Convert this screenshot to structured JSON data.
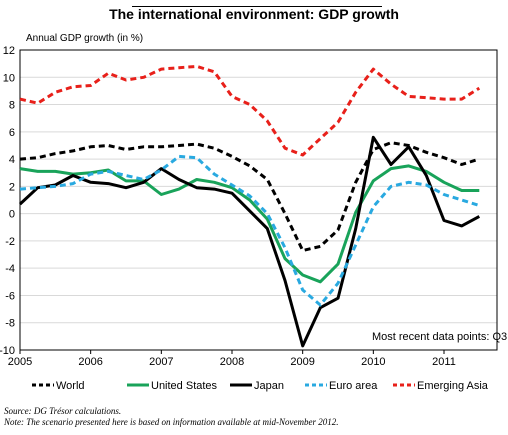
{
  "chart_data": {
    "type": "line",
    "title": "The international environment: GDP growth",
    "ylabel": "Annual GDP growth (in %)",
    "ylim": [
      -10,
      12
    ],
    "yticks": [
      -10,
      -8,
      -6,
      -4,
      -2,
      0,
      2,
      4,
      6,
      8,
      10,
      12
    ],
    "xticks": [
      "2005",
      "2006",
      "2007",
      "2008",
      "2009",
      "2010",
      "2011"
    ],
    "xlim": [
      2005.0,
      2011.75
    ],
    "grid": true,
    "legend_position": "bottom",
    "annotation": "Most recent data points: Q3",
    "x": [
      2005.0,
      2005.25,
      2005.5,
      2005.75,
      2006.0,
      2006.25,
      2006.5,
      2006.75,
      2007.0,
      2007.25,
      2007.5,
      2007.75,
      2008.0,
      2008.25,
      2008.5,
      2008.75,
      2009.0,
      2009.25,
      2009.5,
      2009.75,
      2010.0,
      2010.25,
      2010.5,
      2010.75,
      2011.0,
      2011.25,
      2011.5
    ],
    "series": [
      {
        "name": "World",
        "color": "#000000",
        "dash": "dashed",
        "values": [
          4.0,
          4.1,
          4.4,
          4.6,
          4.9,
          5.0,
          4.7,
          4.9,
          4.9,
          5.0,
          5.1,
          4.8,
          4.2,
          3.5,
          2.5,
          0.0,
          -2.7,
          -2.4,
          -1.2,
          2.3,
          4.7,
          5.2,
          5.0,
          4.5,
          4.1,
          3.6,
          4.0
        ]
      },
      {
        "name": "United States",
        "color": "#19a35a",
        "dash": "solid",
        "values": [
          3.3,
          3.1,
          3.1,
          2.9,
          3.0,
          3.2,
          2.4,
          2.4,
          1.4,
          1.8,
          2.5,
          2.3,
          1.9,
          1.0,
          -0.4,
          -3.3,
          -4.5,
          -5.0,
          -3.7,
          0.1,
          2.4,
          3.3,
          3.5,
          3.1,
          2.3,
          1.7,
          1.7
        ]
      },
      {
        "name": "Japan",
        "color": "#000000",
        "dash": "solid",
        "values": [
          0.7,
          1.9,
          2.1,
          2.8,
          2.3,
          2.2,
          1.9,
          2.3,
          3.3,
          2.5,
          1.9,
          1.8,
          1.5,
          0.2,
          -1.1,
          -4.9,
          -9.7,
          -6.9,
          -6.2,
          -1.1,
          5.6,
          3.6,
          4.9,
          2.8,
          -0.5,
          -0.9,
          -0.2
        ]
      },
      {
        "name": "Euro area",
        "color": "#29a9e0",
        "dash": "dashed",
        "values": [
          1.8,
          1.9,
          2.0,
          2.2,
          2.9,
          3.1,
          2.8,
          2.5,
          3.2,
          4.2,
          4.1,
          2.9,
          2.1,
          1.3,
          0.0,
          -2.5,
          -5.6,
          -6.7,
          -5.1,
          -2.3,
          0.5,
          2.0,
          2.3,
          2.1,
          1.4,
          1.0,
          0.6
        ]
      },
      {
        "name": "Emerging Asia",
        "color": "#e8201a",
        "dash": "dashed",
        "values": [
          8.4,
          8.1,
          8.9,
          9.3,
          9.4,
          10.3,
          9.8,
          10.0,
          10.6,
          10.7,
          10.8,
          10.4,
          8.6,
          8.0,
          6.8,
          4.8,
          4.3,
          5.5,
          6.7,
          8.9,
          10.6,
          9.5,
          8.6,
          8.5,
          8.4,
          8.4,
          9.2
        ]
      }
    ]
  },
  "footnotes": {
    "source": "Source: DG Trésor calculations.",
    "note": "Note: The scenario presented here is based on information available at mid-November 2012."
  }
}
